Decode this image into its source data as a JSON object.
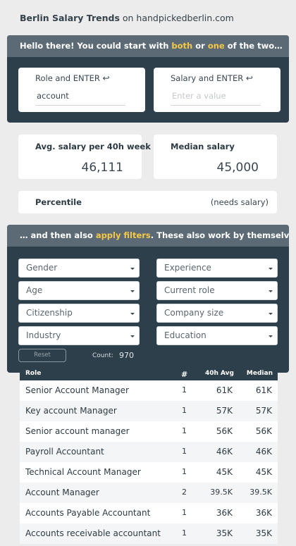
{
  "header": {
    "brand": "Berlin Salary Trends",
    "suffix": " on handpickedberlin.com"
  },
  "intro": {
    "text_before": "Hello there! You could start with ",
    "both": "both",
    "or": " or ",
    "one": "one",
    "text_after": " of the two…"
  },
  "role_input": {
    "label": "Role and ENTER",
    "enter_glyph": "↩",
    "value": "account"
  },
  "salary_input": {
    "label": "Salary and ENTER",
    "enter_glyph": "↩",
    "placeholder": "Enter a value"
  },
  "stats": {
    "avg_label": "Avg. salary per 40h week",
    "avg_value": "46,111",
    "median_label": "Median salary",
    "median_value": "45,000",
    "percentile_label": "Percentile",
    "percentile_value": "(needs salary)"
  },
  "filters_intro": {
    "text_before": "… and then also ",
    "highlight": "apply filters",
    "text_after": ". These also work by themselves!"
  },
  "filters": [
    "Gender",
    "Experience",
    "Age",
    "Current role",
    "Citizenship",
    "Company size",
    "Industry",
    "Education"
  ],
  "reset_label": "Reset",
  "count_label": "Count:",
  "count_value": "970",
  "table": {
    "headers": {
      "role": "Role",
      "n": "#",
      "avg": "40h Avg",
      "median": "Median"
    },
    "rows": [
      {
        "role": "Senior Account Manager",
        "n": "1",
        "avg": "61K",
        "median": "61K"
      },
      {
        "role": "Key account Manager",
        "n": "1",
        "avg": "57K",
        "median": "57K"
      },
      {
        "role": "Senior account manager",
        "n": "1",
        "avg": "56K",
        "median": "56K"
      },
      {
        "role": "Payroll Accountant",
        "n": "1",
        "avg": "46K",
        "median": "46K"
      },
      {
        "role": "Technical Account Manager",
        "n": "1",
        "avg": "45K",
        "median": "45K"
      },
      {
        "role": "Account Manager",
        "n": "2",
        "avg": "39.5K",
        "median": "39.5K"
      },
      {
        "role": "Accounts Payable Accountant",
        "n": "1",
        "avg": "36K",
        "median": "36K"
      },
      {
        "role": "Accounts receivable accountant",
        "n": "1",
        "avg": "35K",
        "median": "35K"
      }
    ]
  },
  "colors": {
    "panel": "#2d3f4b",
    "band": "#5b6a74",
    "highlight": "#f5c84a",
    "background": "#ececec"
  }
}
